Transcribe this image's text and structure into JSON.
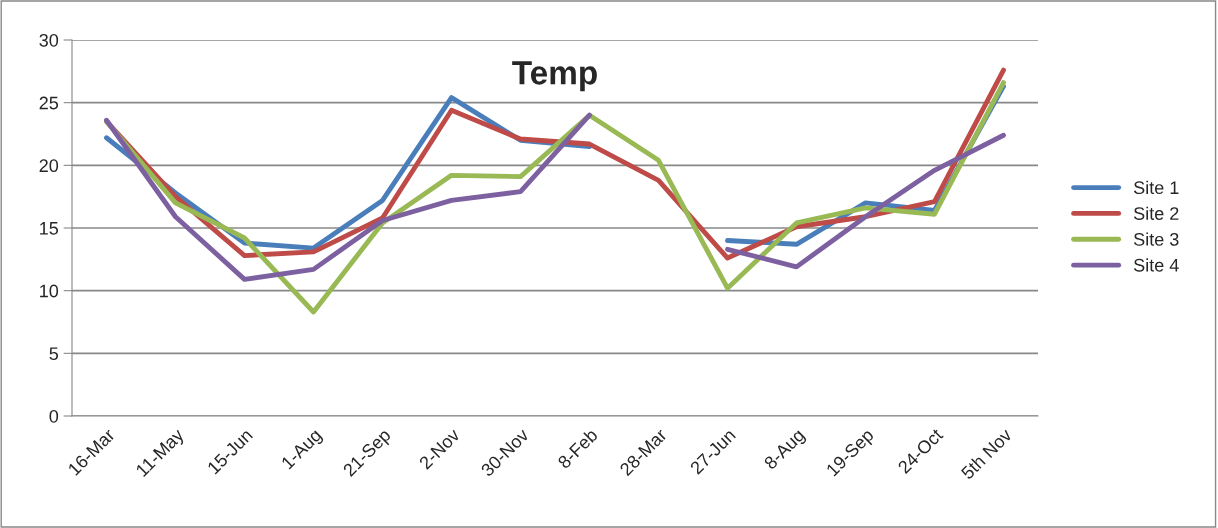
{
  "chart_data": {
    "type": "line",
    "title": "Temp",
    "categories": [
      "16-Mar",
      "11-May",
      "15-Jun",
      "1-Aug",
      "21-Sep",
      "2-Nov",
      "30-Nov",
      "8-Feb",
      "28-Mar",
      "27-Jun",
      "8-Aug",
      "19-Sep",
      "24-Oct",
      "5th Nov"
    ],
    "series": [
      {
        "name": "Site 1",
        "color": "#4a7ebb",
        "values": [
          22.2,
          17.8,
          13.8,
          13.4,
          17.2,
          25.4,
          22.0,
          21.5,
          null,
          14.0,
          13.7,
          17.0,
          16.4,
          26.3
        ]
      },
      {
        "name": "Site 2",
        "color": "#be4b48",
        "values": [
          23.5,
          17.5,
          12.8,
          13.1,
          15.8,
          24.4,
          22.1,
          21.7,
          18.8,
          12.6,
          15.1,
          15.9,
          17.1,
          27.6
        ]
      },
      {
        "name": "Site 3",
        "color": "#98b954",
        "values": [
          23.5,
          17.0,
          14.2,
          8.3,
          15.4,
          19.2,
          19.1,
          24.0,
          20.4,
          10.2,
          15.4,
          16.6,
          16.1,
          26.6
        ]
      },
      {
        "name": "Site 4",
        "color": "#7d60a0",
        "values": [
          23.6,
          15.9,
          10.9,
          11.7,
          15.6,
          17.2,
          17.9,
          24.0,
          null,
          13.3,
          11.9,
          15.9,
          19.6,
          22.4
        ]
      }
    ],
    "ylim": [
      0,
      30
    ],
    "yticks": [
      0,
      5,
      10,
      15,
      20,
      25,
      30
    ],
    "grid": "y",
    "legend": "right",
    "marker": "none",
    "line_style": "solid"
  }
}
